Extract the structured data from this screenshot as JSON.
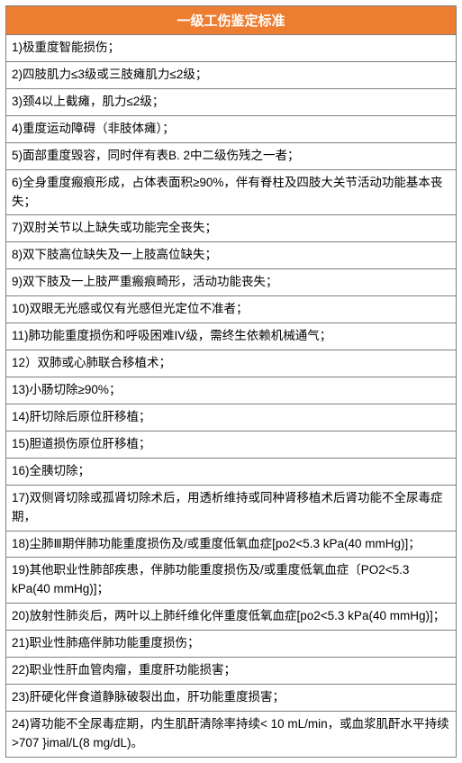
{
  "table": {
    "title": "一级工伤鉴定标准",
    "header_bg": "#ed7d31",
    "header_color": "#ffffff",
    "border_color": "#808080",
    "row_bg": "#ffffff",
    "text_color": "#000000",
    "title_fontsize": 15,
    "row_fontsize": 13.5,
    "rows": [
      "1)极重度智能损伤；",
      "2)四肢肌力≤3级或三肢瘫肌力≤2级；",
      "3)颈4以上截瘫，肌力≤2级；",
      "4)重度运动障碍（非肢体瘫）；",
      "5)面部重度毁容，同时伴有表B. 2中二级伤残之一者；",
      "6)全身重度瘢痕形成，占体表面积≥90%，伴有脊柱及四肢大关节活动功能基本丧失；",
      "7)双肘关节以上缺失或功能完全丧失；",
      "8)双下肢高位缺失及一上肢高位缺失；",
      "9)双下肢及一上肢严重瘢痕畸形，活动功能丧失；",
      "10)双眼无光感或仅有光感但光定位不准者；",
      "11)肺功能重度损伤和呼吸困难IV级，需终生依赖机械通气；",
      "12）双肺或心肺联合移植术；",
      "13)小肠切除≥90%；",
      "14)肝切除后原位肝移植；",
      "15)胆道损伤原位肝移植；",
      "16)全胰切除；",
      "17)双侧肾切除或孤肾切除术后，用透析维持或同种肾移植术后肾功能不全尿毒症期，",
      "18)尘肺Ⅲ期伴肺功能重度损伤及/或重度低氧血症[po2<5.3 kPa(40 mmHg)]；",
      "19)其他职业性肺部疾患，伴肺功能重度损伤及/或重度低氧血症〔PO2<5.3 kPa(40 mmHg)]；",
      "20)放射性肺炎后，两叶以上肺纤维化伴重度低氧血症[po2<5.3 kPa(40 mmHg)]；",
      "21)职业性肺癌伴肺功能重度损伤；",
      "22)职业性肝血管肉瘤，重度肝功能损害；",
      "23)肝硬化伴食道静脉破裂出血，肝功能重度损害；",
      "24)肾功能不全尿毒症期，内生肌酐清除率持续< 10 mL/min，或血浆肌酐水平持续>707 }imal/L(8 mg/dL)。"
    ]
  }
}
